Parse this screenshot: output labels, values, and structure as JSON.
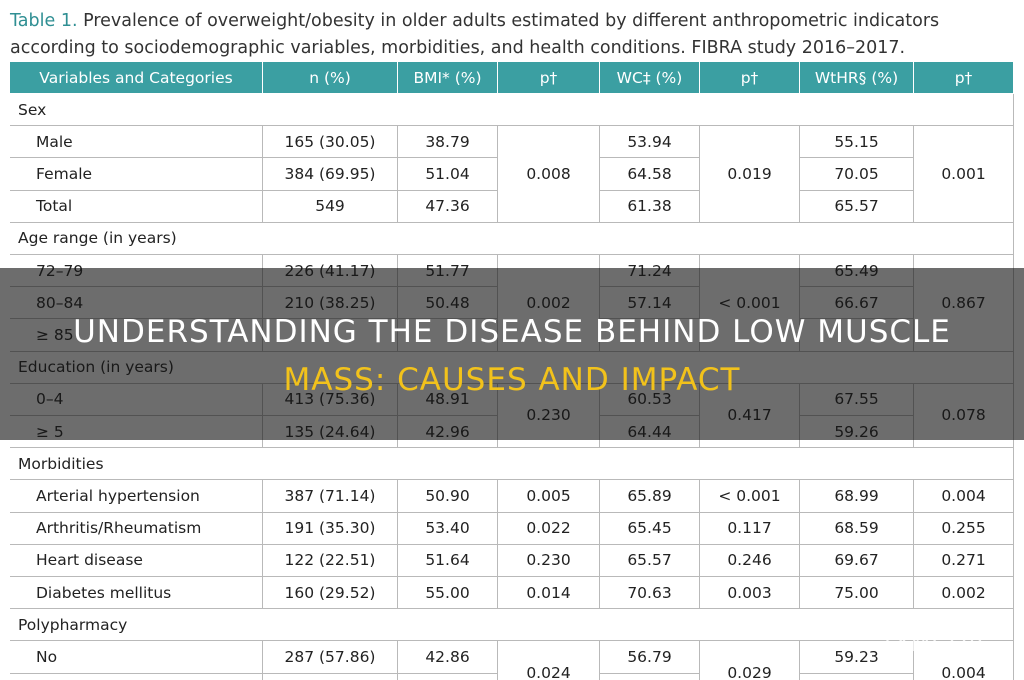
{
  "caption": {
    "label": "Table 1.",
    "text": "Prevalence of overweight/obesity in older adults estimated by different anthropometric indicators according to sociodemographic variables, morbidities, and health conditions. FIBRA study 2016–2017."
  },
  "table": {
    "header": [
      "Variables and Categories",
      "n (%)",
      "BMI* (%)",
      "p†",
      "WC‡ (%)",
      "p†",
      "WtHR§ (%)",
      "p†"
    ],
    "sections": [
      {
        "title": "Sex",
        "rows": [
          {
            "cells": [
              "Male",
              "165 (30.05)",
              "38.79",
              "53.94",
              "55.15"
            ]
          },
          {
            "cells": [
              "Female",
              "384 (69.95)",
              "51.04",
              "64.58",
              "70.05"
            ]
          },
          {
            "cells": [
              "Total",
              "549",
              "47.36",
              "61.38",
              "65.57"
            ]
          }
        ],
        "p": [
          "0.008",
          "0.019",
          "0.001"
        ]
      },
      {
        "title": "Age range (in years)",
        "rows": [
          {
            "cells": [
              "72–79",
              "226 (41.17)",
              "51.77",
              "71.24",
              "65.49"
            ]
          },
          {
            "cells": [
              "80–84",
              "210 (38.25)",
              "50.48",
              "57.14",
              "66.67"
            ]
          },
          {
            "cells": [
              "≥ 85"
            ]
          }
        ],
        "p": [
          "0.002",
          "< 0.001",
          "0.867"
        ]
      },
      {
        "title": "Education (in years)",
        "rows": [
          {
            "cells": [
              "0–4",
              "413 (75.36)",
              "48.91",
              "60.53",
              "67.55"
            ]
          },
          {
            "cells": [
              "≥ 5",
              "135 (24.64)",
              "42.96",
              "64.44",
              "59.26"
            ]
          }
        ],
        "p": [
          "0.230",
          "0.417",
          "0.078"
        ]
      },
      {
        "title": "Morbidities",
        "rows": [
          {
            "cells": [
              "Arterial hypertension",
              "387 (71.14)",
              "50.90",
              "65.89",
              "68.99"
            ],
            "p": [
              "0.005",
              "< 0.001",
              "0.004"
            ]
          },
          {
            "cells": [
              "Arthritis/Rheumatism",
              "191 (35.30)",
              "53.40",
              "65.45",
              "68.59"
            ],
            "p": [
              "0.022",
              "0.117",
              "0.255"
            ]
          },
          {
            "cells": [
              "Heart disease",
              "122 (22.51)",
              "51.64",
              "65.57",
              "69.67"
            ],
            "p": [
              "0.230",
              "0.246",
              "0.271"
            ]
          },
          {
            "cells": [
              "Diabetes mellitus",
              "160 (29.52)",
              "55.00",
              "70.63",
              "75.00"
            ],
            "p": [
              "0.014",
              "0.003",
              "0.002"
            ]
          }
        ]
      },
      {
        "title": "Polypharmacy",
        "rows": [
          {
            "cells": [
              "No",
              "287 (57.86)",
              "42.86",
              "56.79",
              "59.23"
            ]
          }
        ],
        "p": [
          "0.024",
          "0.029",
          "0.004"
        ]
      }
    ]
  },
  "overlay": {
    "title_lines": [
      "UNDERSTANDING THE DISEASE BEHIND LOW MUSCLE",
      "MASS: CAUSES AND IMPACT"
    ],
    "watermark": "LYMCOR"
  }
}
